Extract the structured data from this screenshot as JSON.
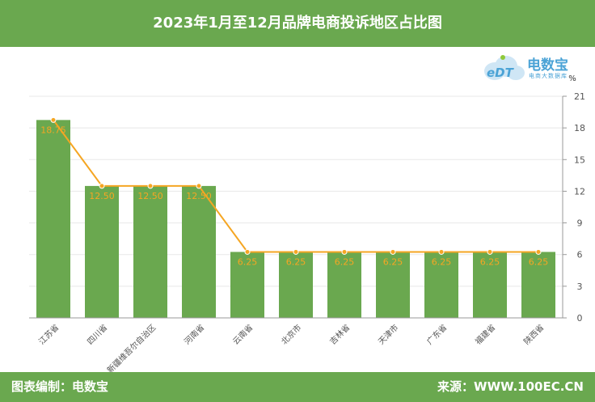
{
  "header": {
    "title": "2023年1月至12月品牌电商投诉地区占比图"
  },
  "logo": {
    "name": "电数宝",
    "subtitle": "电商大数据库",
    "mark": "eDT"
  },
  "footer": {
    "left": "图表编制：电数宝",
    "right": "来源：WWW.100EC.CN"
  },
  "colors": {
    "bar": "#6aa84f",
    "line": "#f5a623",
    "header": "#6aa84f"
  },
  "chart_data": {
    "type": "bar",
    "categories": [
      "江苏省",
      "四川省",
      "新疆维吾尔自治区",
      "河南省",
      "云南省",
      "北京市",
      "吉林省",
      "天津市",
      "广东省",
      "福建省",
      "陕西省"
    ],
    "series": [
      {
        "type": "bar",
        "values": [
          18.75,
          12.5,
          12.5,
          12.5,
          6.25,
          6.25,
          6.25,
          6.25,
          6.25,
          6.25,
          6.25
        ]
      },
      {
        "type": "line",
        "values": [
          18.75,
          12.5,
          12.5,
          12.5,
          6.25,
          6.25,
          6.25,
          6.25,
          6.25,
          6.25,
          6.25
        ]
      }
    ],
    "data_labels": [
      "18.75",
      "12.50",
      "12.50",
      "12.50",
      "6.25",
      "6.25",
      "6.25",
      "6.25",
      "6.25",
      "6.25",
      "6.25"
    ],
    "ylabel": "%",
    "ylim": [
      0,
      21
    ],
    "yticks": [
      "0",
      "3",
      "6",
      "9",
      "12",
      "15",
      "18",
      "21"
    ],
    "y_axis_side": "right",
    "grid": true
  }
}
